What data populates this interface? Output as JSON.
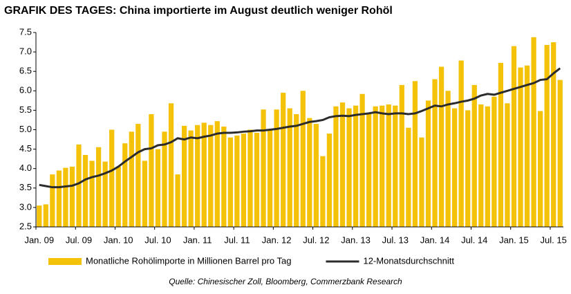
{
  "chart_data": {
    "type": "combo",
    "title": "GRAFIK DES TAGES: China importierte im August deutlich weniger Rohöl",
    "source": "Quelle: Chinesischer Zoll, Bloomberg, Commerzbank Research",
    "categories": [
      "Jan. 09",
      null,
      null,
      null,
      null,
      null,
      "Jul. 09",
      null,
      null,
      null,
      null,
      null,
      "Jan. 10",
      null,
      null,
      null,
      null,
      null,
      "Jul. 10",
      null,
      null,
      null,
      null,
      null,
      "Jan. 11",
      null,
      null,
      null,
      null,
      null,
      "Jul. 11",
      null,
      null,
      null,
      null,
      null,
      "Jan. 12",
      null,
      null,
      null,
      null,
      null,
      "Jul. 12",
      null,
      null,
      null,
      null,
      null,
      "Jan. 13",
      null,
      null,
      null,
      null,
      null,
      "Jul. 13",
      null,
      null,
      null,
      null,
      null,
      "Jan. 14",
      null,
      null,
      null,
      null,
      null,
      "Jul. 14",
      null,
      null,
      null,
      null,
      null,
      "Jan. 15",
      null,
      null,
      null,
      null,
      null,
      "Jul. 15",
      null
    ],
    "ylim": [
      2.5,
      7.5
    ],
    "yticks": [
      2.5,
      {
        "value": 3,
        "label": "3.0"
      },
      3.5,
      {
        "value": 4,
        "label": "4.0"
      },
      4.5,
      {
        "value": 5,
        "label": "5.0"
      },
      5.5,
      {
        "value": 6,
        "label": "6.0"
      },
      6.5,
      {
        "value": 7,
        "label": "7.0"
      },
      7.5
    ],
    "series": [
      {
        "name": "Monatliche Rohölimporte in Millionen Barrel pro Tag",
        "type": "bar",
        "color": "#f5c20a",
        "values": [
          3.05,
          3.08,
          3.85,
          3.95,
          4.02,
          4.05,
          4.62,
          4.35,
          4.2,
          4.55,
          4.18,
          5.0,
          4.05,
          4.65,
          4.95,
          5.15,
          4.2,
          5.4,
          4.5,
          4.95,
          5.68,
          3.85,
          5.1,
          4.98,
          5.12,
          5.18,
          5.12,
          5.22,
          5.08,
          4.8,
          4.85,
          4.9,
          5.0,
          4.92,
          5.52,
          5.0,
          5.52,
          5.95,
          5.55,
          5.4,
          6.0,
          5.3,
          5.15,
          4.32,
          4.9,
          5.6,
          5.7,
          5.55,
          5.62,
          5.92,
          5.42,
          5.6,
          5.62,
          5.65,
          5.62,
          6.15,
          5.05,
          6.25,
          4.8,
          5.75,
          6.3,
          6.62,
          6.0,
          5.55,
          6.78,
          5.5,
          6.15,
          5.65,
          5.6,
          5.85,
          6.72,
          5.68,
          7.15,
          6.6,
          6.65,
          7.38,
          5.48,
          7.18,
          7.25,
          6.28
        ]
      },
      {
        "name": "12-Monatsdurchschnitt",
        "type": "line",
        "color": "#2b2b2b",
        "values": [
          3.58,
          3.55,
          3.52,
          3.52,
          3.54,
          3.56,
          3.62,
          3.72,
          3.78,
          3.82,
          3.88,
          3.95,
          4.05,
          4.18,
          4.3,
          4.42,
          4.5,
          4.52,
          4.6,
          4.62,
          4.68,
          4.78,
          4.75,
          4.8,
          4.78,
          4.82,
          4.85,
          4.9,
          4.92,
          4.92,
          4.93,
          4.95,
          4.96,
          4.98,
          4.98,
          5.0,
          5.02,
          5.05,
          5.08,
          5.1,
          5.15,
          5.2,
          5.22,
          5.25,
          5.32,
          5.35,
          5.36,
          5.35,
          5.38,
          5.4,
          5.42,
          5.45,
          5.42,
          5.4,
          5.42,
          5.42,
          5.4,
          5.42,
          5.48,
          5.55,
          5.62,
          5.6,
          5.65,
          5.68,
          5.72,
          5.75,
          5.8,
          5.88,
          5.92,
          5.9,
          5.95,
          6.0,
          6.05,
          6.1,
          6.15,
          6.2,
          6.28,
          6.3,
          6.45,
          6.58
        ]
      }
    ]
  }
}
